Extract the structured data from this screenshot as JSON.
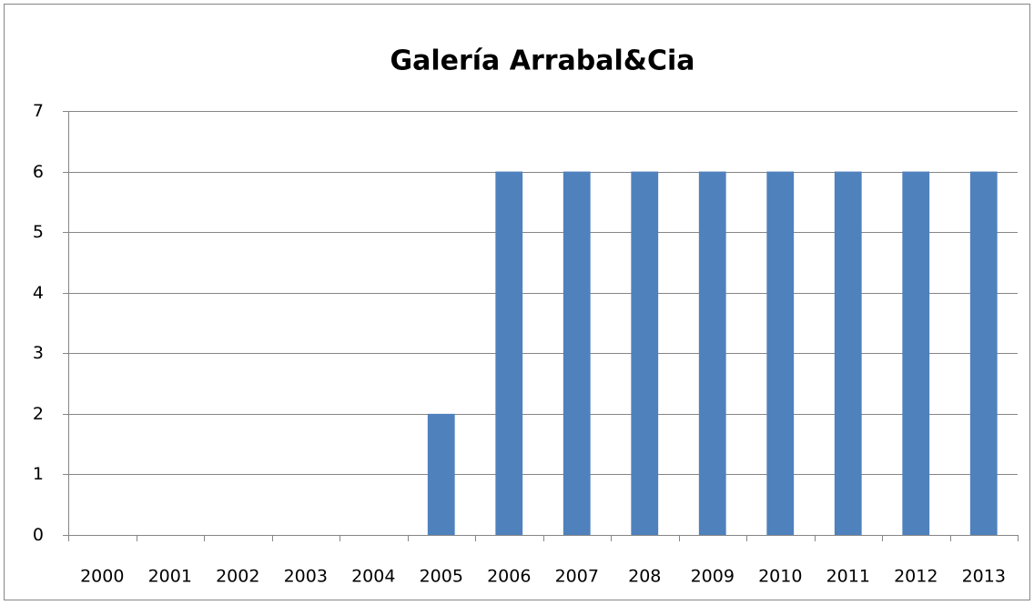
{
  "chart_data": {
    "type": "bar",
    "title": "Galería Arrabal&Cia",
    "categories": [
      "2000",
      "2001",
      "2002",
      "2003",
      "2004",
      "2005",
      "2006",
      "2007",
      "208",
      "2009",
      "2010",
      "2011",
      "2012",
      "2013"
    ],
    "values": [
      0,
      0,
      0,
      0,
      0,
      2,
      6,
      6,
      6,
      6,
      6,
      6,
      6,
      6
    ],
    "color": "#4f81bd",
    "ylim": [
      0,
      7
    ],
    "yticks": [
      0,
      1,
      2,
      3,
      4,
      5,
      6,
      7
    ],
    "grid": true
  }
}
